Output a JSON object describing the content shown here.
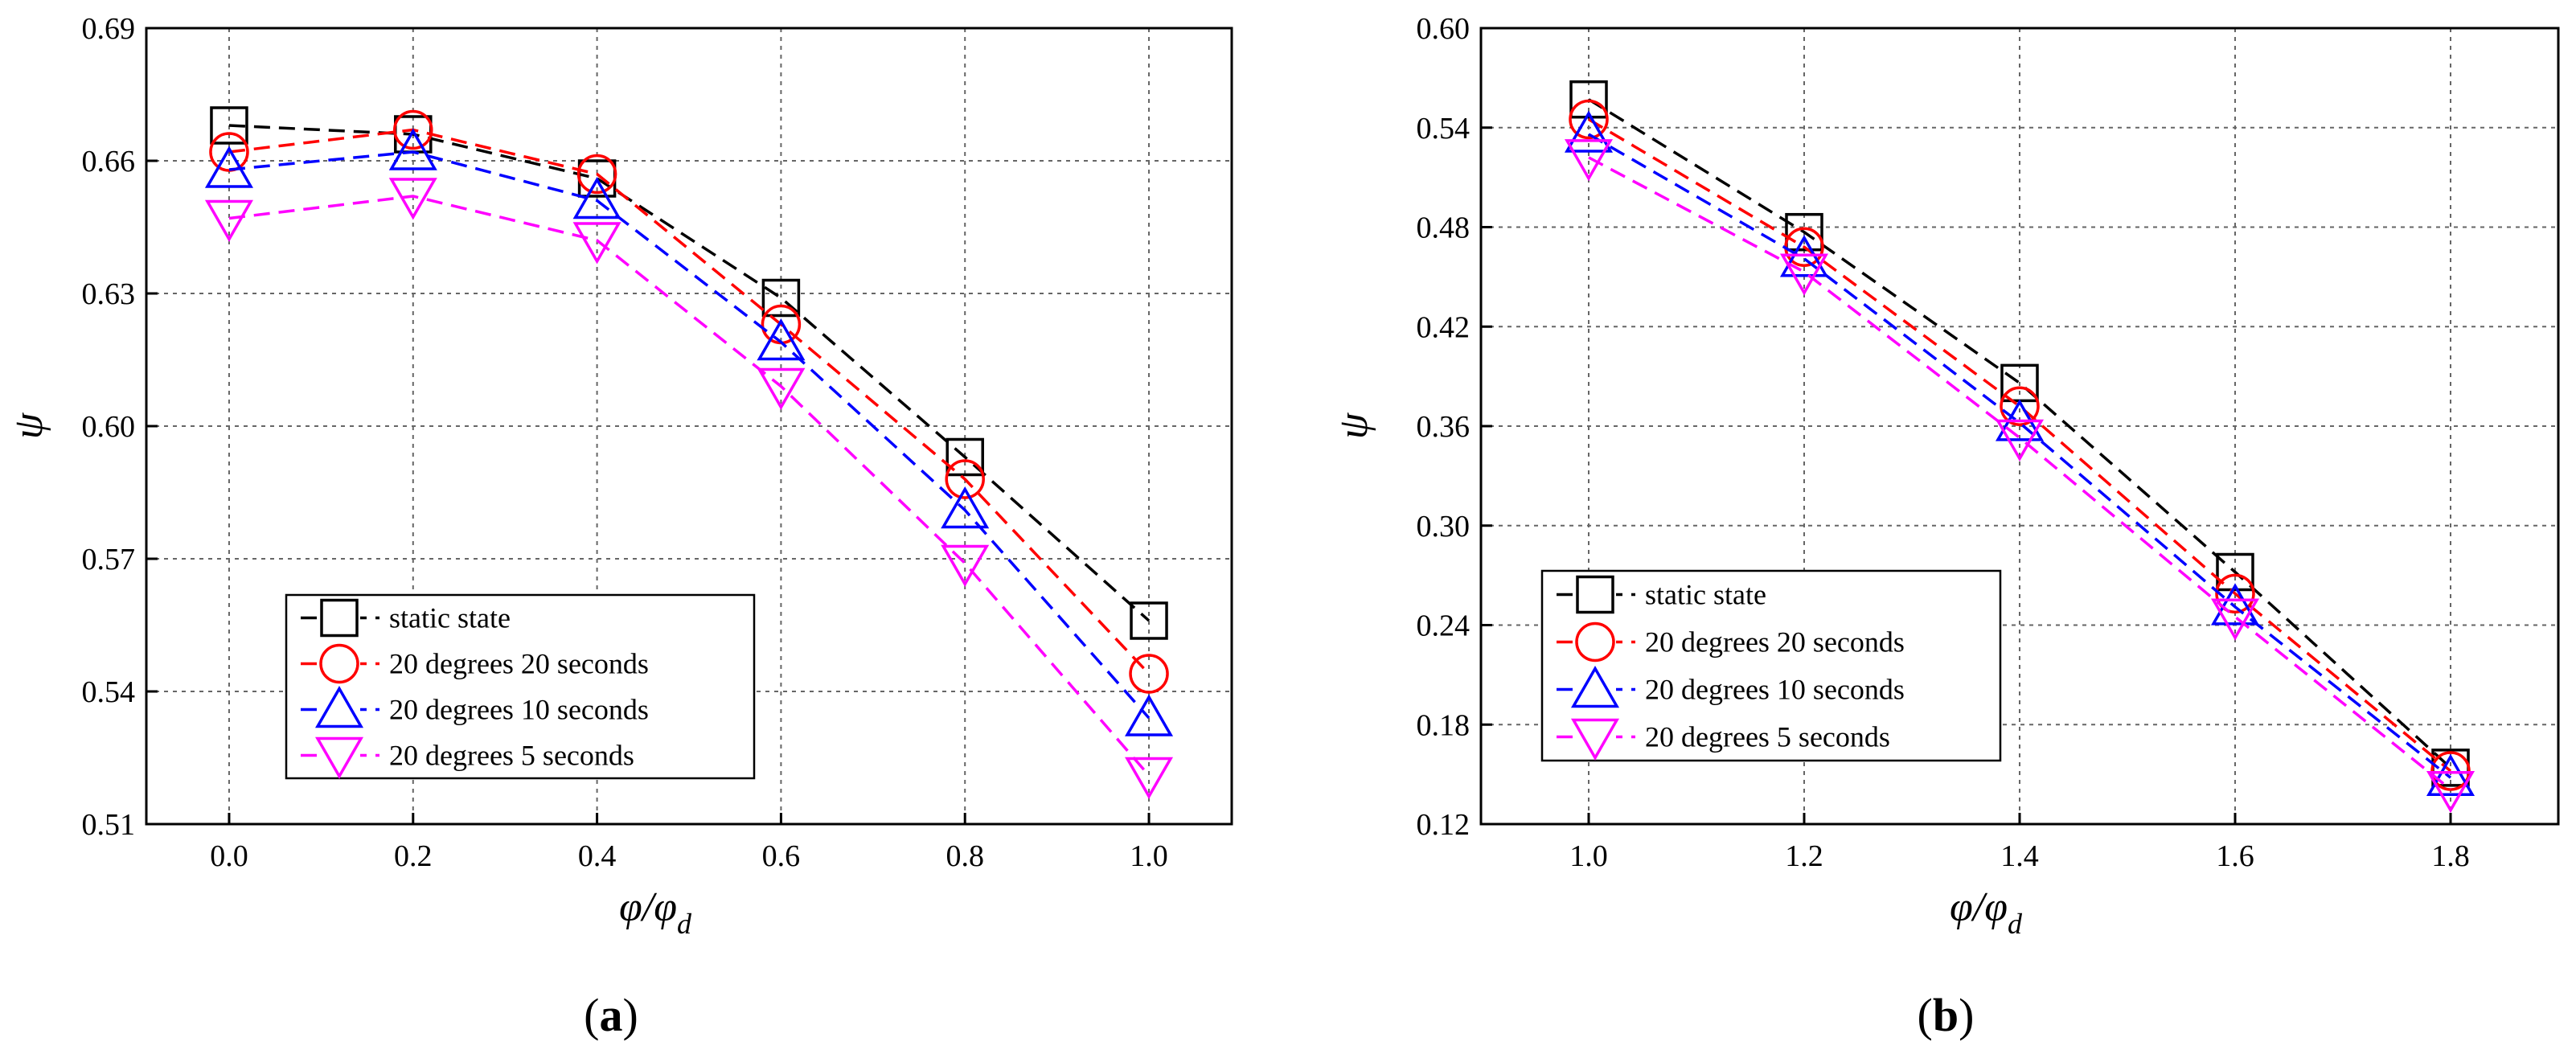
{
  "chart_data": [
    {
      "type": "line",
      "panel": "a",
      "caption": {
        "open": "(",
        "letter": "a",
        "close": ")"
      },
      "x": [
        0.0,
        0.2,
        0.4,
        0.6,
        0.8,
        1.0
      ],
      "xticks": [
        "0.0",
        "0.2",
        "0.4",
        "0.6",
        "0.8",
        "1.0"
      ],
      "xlim": [
        -0.09,
        1.09
      ],
      "yticks": [
        "0.51",
        "0.54",
        "0.57",
        "0.60",
        "0.63",
        "0.66",
        "0.69"
      ],
      "ylim": [
        0.51,
        0.69
      ],
      "xlabel": {
        "main": "φ/φ",
        "sub": "d"
      },
      "ylabel": "ψ",
      "legend_position": "bottom-left",
      "series": [
        {
          "name": "static state",
          "marker": "square",
          "color": "#000000",
          "values": [
            0.668,
            0.666,
            0.656,
            0.629,
            0.593,
            0.556
          ]
        },
        {
          "name": "20 degrees 20 seconds",
          "marker": "circle",
          "color": "#ff0000",
          "values": [
            0.662,
            0.667,
            0.657,
            0.623,
            0.588,
            0.544
          ]
        },
        {
          "name": "20 degrees 10 seconds",
          "marker": "triangle-up",
          "color": "#0000ff",
          "values": [
            0.658,
            0.662,
            0.651,
            0.619,
            0.581,
            0.534
          ]
        },
        {
          "name": "20 degrees 5 seconds",
          "marker": "triangle-down",
          "color": "#ff00ff",
          "values": [
            0.647,
            0.652,
            0.642,
            0.609,
            0.569,
            0.521
          ]
        }
      ]
    },
    {
      "type": "line",
      "panel": "b",
      "caption": {
        "open": "(",
        "letter": "b",
        "close": ")"
      },
      "x": [
        1.0,
        1.2,
        1.4,
        1.6,
        1.8
      ],
      "xticks": [
        "1.0",
        "1.2",
        "1.4",
        "1.6",
        "1.8"
      ],
      "xlim": [
        0.9,
        1.9
      ],
      "yticks": [
        "0.12",
        "0.18",
        "0.24",
        "0.30",
        "0.36",
        "0.42",
        "0.48",
        "0.54",
        "0.60"
      ],
      "ylim": [
        0.12,
        0.6
      ],
      "xlabel": {
        "main": "φ/φ",
        "sub": "d"
      },
      "ylabel": "ψ",
      "legend_position": "bottom-left",
      "series": [
        {
          "name": "static state",
          "marker": "square",
          "color": "#000000",
          "values": [
            0.557,
            0.477,
            0.386,
            0.272,
            0.154
          ]
        },
        {
          "name": "20 degrees 20 seconds",
          "marker": "circle",
          "color": "#ff0000",
          "values": [
            0.545,
            0.468,
            0.372,
            0.259,
            0.152
          ]
        },
        {
          "name": "20 degrees 10 seconds",
          "marker": "triangle-up",
          "color": "#0000ff",
          "values": [
            0.536,
            0.461,
            0.362,
            0.251,
            0.148
          ]
        },
        {
          "name": "20 degrees 5 seconds",
          "marker": "triangle-down",
          "color": "#ff00ff",
          "values": [
            0.522,
            0.453,
            0.353,
            0.245,
            0.141
          ]
        }
      ]
    }
  ]
}
